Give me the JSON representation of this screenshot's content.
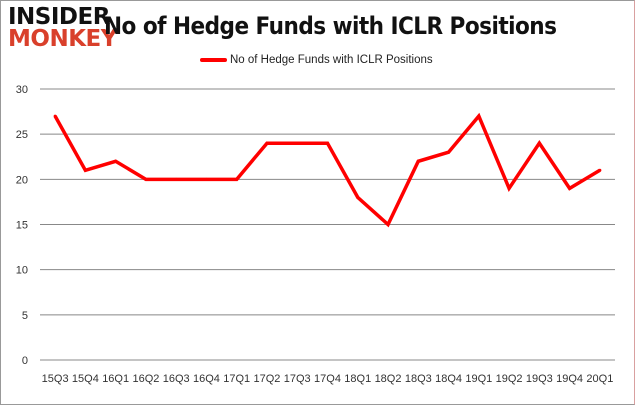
{
  "logo": {
    "line1": "INSIDER",
    "line2": "MONKEY"
  },
  "chart_data": {
    "type": "line",
    "title": "No of Hedge Funds with ICLR Positions",
    "xlabel": "",
    "ylabel": "",
    "categories": [
      "15Q3",
      "15Q4",
      "16Q1",
      "16Q2",
      "16Q3",
      "16Q4",
      "17Q1",
      "17Q2",
      "17Q3",
      "17Q4",
      "18Q1",
      "18Q2",
      "18Q3",
      "18Q4",
      "19Q1",
      "19Q2",
      "19Q3",
      "19Q4",
      "20Q1"
    ],
    "series": [
      {
        "name": "No of Hedge Funds with ICLR Positions",
        "color": "#ff0000",
        "values": [
          27,
          21,
          22,
          20,
          20,
          20,
          20,
          24,
          24,
          24,
          18,
          15,
          22,
          23,
          27,
          19,
          24,
          19,
          21
        ]
      }
    ],
    "ylim": [
      0,
      30
    ],
    "yticks": [
      0,
      5,
      10,
      15,
      20,
      25,
      30
    ],
    "grid": true,
    "legend_position": "top"
  }
}
